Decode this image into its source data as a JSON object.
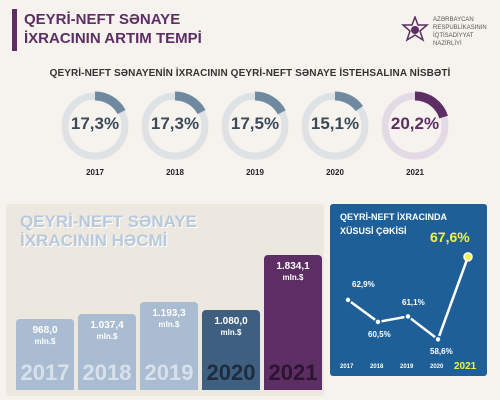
{
  "header": {
    "title_line1": "QEYRİ-NEFT SƏNAYE",
    "title_line2": "İXRACININ ARTIM TEMPİ",
    "ministry_line1": "AZƏRBAYCAN",
    "ministry_line2": "RESPUBLİKASININ",
    "ministry_line3": "İQTİSADİYYAT",
    "ministry_line4": "NAZİRLİYİ"
  },
  "subtitle": "QEYRİ-NEFT SƏNAYENİN İXRACININ QEYRİ-NEFT SƏNAYE İSTEHSALINA NİSBƏTİ",
  "colors": {
    "accent": "#5c2e63",
    "gauge_fill": "#6f8aa0",
    "gauge_track": "#dfe2e4",
    "blue_panel": "#1f5f97",
    "highlight": "#f2f24a"
  },
  "chart_data": [
    {
      "type": "pie",
      "title": "QEYRİ-NEFT SƏNAYENİN İXRACININ QEYRİ-NEFT SƏNAYE İSTEHSALINA NİSBƏTİ",
      "categories": [
        "2017",
        "2018",
        "2019",
        "2020",
        "2021"
      ],
      "values": [
        17.3,
        17.3,
        17.5,
        15.1,
        20.2
      ],
      "labels": [
        "17,3%",
        "17,3%",
        "17,5%",
        "15,1%",
        "20,2%"
      ]
    },
    {
      "type": "bar",
      "title_line1": "QEYRİ-NEFT SƏNAYE",
      "title_line2": "İXRACININ HƏCMİ",
      "categories": [
        "2017",
        "2018",
        "2019",
        "2020",
        "2021"
      ],
      "values": [
        968.0,
        1037.4,
        1193.3,
        1080.0,
        1834.1
      ],
      "labels": [
        "968,0",
        "1.037,4",
        "1.193,3",
        "1.080,0",
        "1.834,1"
      ],
      "unit": "mln.$",
      "ylim": [
        0,
        1900
      ]
    },
    {
      "type": "line",
      "title_line1": "QEYRİ-NEFT İXRACINDA",
      "title_line2": "XÜSUSİ ÇƏKİSİ",
      "categories": [
        "2017",
        "2018",
        "2019",
        "2020",
        "2021"
      ],
      "values": [
        62.9,
        60.5,
        61.1,
        58.6,
        67.6
      ],
      "labels": [
        "62,9%",
        "60,5%",
        "61,1%",
        "58,6%",
        "67,6%"
      ],
      "ylim": [
        57,
        69
      ]
    }
  ]
}
